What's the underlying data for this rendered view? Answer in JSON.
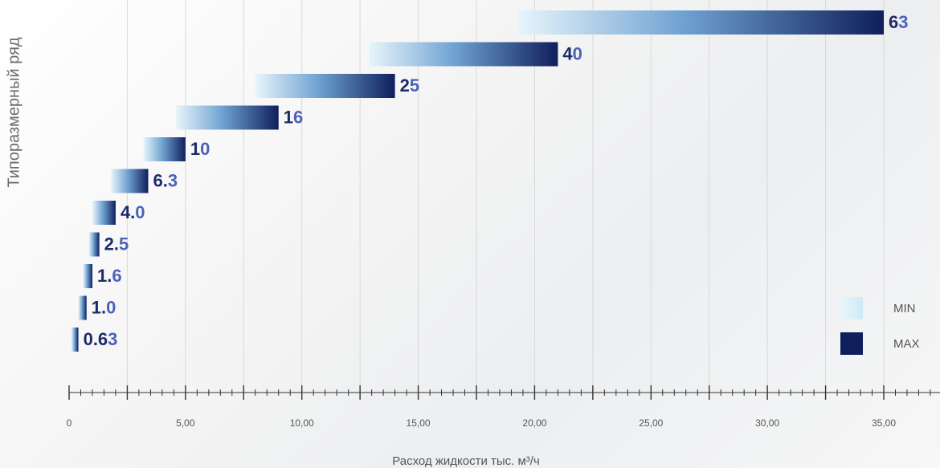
{
  "chart_data": {
    "type": "bar",
    "orientation": "horizontal",
    "ylabel": "Типоразмерный ряд",
    "xlabel": "Расход жидкости тыс. м³/ч",
    "xlim": [
      0,
      37
    ],
    "x_ticks": [
      {
        "value": 0,
        "label": "0"
      },
      {
        "value": 5,
        "label": "5,00"
      },
      {
        "value": 10,
        "label": "10,00"
      },
      {
        "value": 15,
        "label": "15,00"
      },
      {
        "value": 20,
        "label": "20,00"
      },
      {
        "value": 25,
        "label": "25,00"
      },
      {
        "value": 30,
        "label": "30,00"
      },
      {
        "value": 35,
        "label": "35,00"
      }
    ],
    "minor_tick_step": 0.5,
    "grid": "vertical",
    "legend_position": "right",
    "legend": [
      {
        "name": "MIN",
        "color": "#d8eef8"
      },
      {
        "name": "MAX",
        "color": "#0f1f5c"
      }
    ],
    "bars": [
      {
        "label": "63",
        "min": 19.3,
        "max": 35.0
      },
      {
        "label": "40",
        "min": 12.9,
        "max": 21.0
      },
      {
        "label": "25",
        "min": 8.0,
        "max": 14.0
      },
      {
        "label": "16",
        "min": 4.6,
        "max": 9.0
      },
      {
        "label": "10",
        "min": 3.2,
        "max": 5.0
      },
      {
        "label": "6.3",
        "min": 1.8,
        "max": 3.4
      },
      {
        "label": "4.0",
        "min": 1.0,
        "max": 2.0
      },
      {
        "label": "2.5",
        "min": 0.85,
        "max": 1.3
      },
      {
        "label": "1.6",
        "min": 0.6,
        "max": 1.0
      },
      {
        "label": "1.0",
        "min": 0.4,
        "max": 0.75
      },
      {
        "label": "0.63",
        "min": 0.1,
        "max": 0.4
      }
    ],
    "colors": {
      "bar_min": "#d8eef8",
      "bar_mid": "#6fa2d2",
      "bar_max": "#0f1f5c",
      "label_dark": "#1d2b6b",
      "label_light": "#4a62b8"
    }
  }
}
